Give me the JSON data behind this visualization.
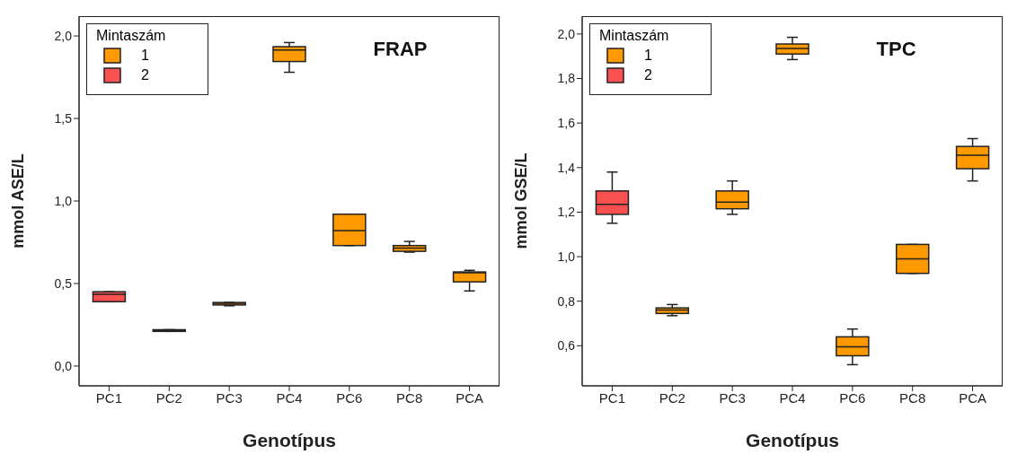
{
  "chart_data": [
    {
      "type": "box",
      "title": "FRAP",
      "xlabel": "Genotípus",
      "ylabel": "mmol ASE/L",
      "legend_title": "Mintaszám",
      "legend": "top left",
      "categories": [
        "PC1",
        "PC2",
        "PC3",
        "PC4",
        "PC6",
        "PC8",
        "PCA"
      ],
      "ylim": [
        -0.12,
        2.12
      ],
      "yticks": [
        {
          "value": 0,
          "label": "0,0"
        },
        {
          "value": 0.5,
          "label": "0,5"
        },
        {
          "value": 1,
          "label": "1,0"
        },
        {
          "value": 1.5,
          "label": "1,5"
        },
        {
          "value": 2,
          "label": "2,0"
        }
      ],
      "series": [
        {
          "name": "1",
          "color": "#ff9900",
          "boxes": [
            null,
            {
              "low": 0.21,
              "q1": 0.21,
              "median": 0.215,
              "q3": 0.22,
              "high": 0.22
            },
            {
              "low": 0.365,
              "q1": 0.37,
              "median": 0.38,
              "q3": 0.385,
              "high": 0.385
            },
            {
              "low": 1.78,
              "q1": 1.845,
              "median": 1.915,
              "q3": 1.935,
              "high": 1.96
            },
            {
              "low": 0.73,
              "q1": 0.73,
              "median": 0.82,
              "q3": 0.92,
              "high": 0.92
            },
            {
              "low": 0.69,
              "q1": 0.695,
              "median": 0.715,
              "q3": 0.73,
              "high": 0.755
            },
            {
              "low": 0.455,
              "q1": 0.51,
              "median": 0.565,
              "q3": 0.57,
              "high": 0.58
            }
          ]
        },
        {
          "name": "2",
          "color": "#fa5050",
          "boxes": [
            {
              "low": 0.39,
              "q1": 0.39,
              "median": 0.435,
              "q3": 0.45,
              "high": 0.45
            },
            null,
            null,
            null,
            null,
            null,
            null
          ]
        }
      ]
    },
    {
      "type": "box",
      "title": "TPC",
      "xlabel": "Genotípus",
      "ylabel": "mmol GSE/L",
      "legend_title": "Mintaszám",
      "legend": "top left",
      "categories": [
        "PC1",
        "PC2",
        "PC3",
        "PC4",
        "PC6",
        "PC8",
        "PCA"
      ],
      "ylim": [
        0.42,
        2.08
      ],
      "yticks": [
        {
          "value": 0.6,
          "label": "0,6"
        },
        {
          "value": 0.8,
          "label": "0,8"
        },
        {
          "value": 1,
          "label": "1,0"
        },
        {
          "value": 1.2,
          "label": "1,2"
        },
        {
          "value": 1.4,
          "label": "1,4"
        },
        {
          "value": 1.6,
          "label": "1,6"
        },
        {
          "value": 1.8,
          "label": "1,8"
        },
        {
          "value": 2,
          "label": "2,0"
        }
      ],
      "series": [
        {
          "name": "1",
          "color": "#ff9900",
          "boxes": [
            null,
            {
              "low": 0.735,
              "q1": 0.745,
              "median": 0.76,
              "q3": 0.77,
              "high": 0.785
            },
            {
              "low": 1.19,
              "q1": 1.215,
              "median": 1.245,
              "q3": 1.295,
              "high": 1.34
            },
            {
              "low": 1.885,
              "q1": 1.91,
              "median": 1.935,
              "q3": 1.955,
              "high": 1.985
            },
            {
              "low": 0.515,
              "q1": 0.555,
              "median": 0.595,
              "q3": 0.64,
              "high": 0.675
            },
            {
              "low": 0.925,
              "q1": 0.925,
              "median": 0.99,
              "q3": 1.055,
              "high": 1.055
            },
            {
              "low": 1.34,
              "q1": 1.395,
              "median": 1.455,
              "q3": 1.495,
              "high": 1.53
            }
          ]
        },
        {
          "name": "2",
          "color": "#fa5050",
          "boxes": [
            {
              "low": 1.15,
              "q1": 1.19,
              "median": 1.235,
              "q3": 1.295,
              "high": 1.38
            },
            null,
            null,
            null,
            null,
            null,
            null
          ]
        }
      ]
    }
  ]
}
